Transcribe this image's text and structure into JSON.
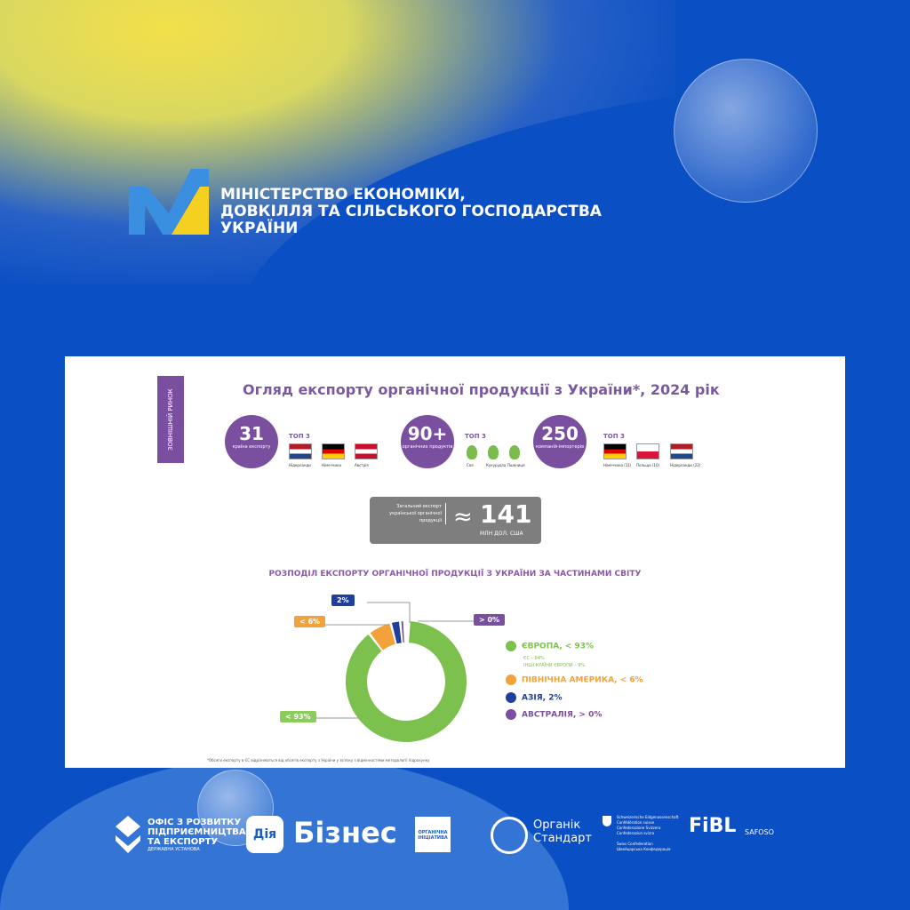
{
  "header": {
    "ministry": [
      "МІНІСТЕРСТВО ЕКОНОМІКИ,",
      "ДОВКІЛЛЯ ТА СІЛЬСЬКОГО ГОСПОДАРСТВА",
      "УКРАЇНИ"
    ]
  },
  "slide": {
    "side_label": "ЗОВНІШНІЙ РИНОК",
    "title": "Огляд експорту органічної продукції з України*, 2024 рік",
    "stats": [
      {
        "value": "31",
        "caption": "країна експорту",
        "top_label": "ТОП 3",
        "items": [
          "Нідерланди",
          "Німеччина",
          "Австрія"
        ]
      },
      {
        "value": "90+",
        "caption": "органічних продуктів",
        "top_label": "ТОП 3",
        "items": [
          "Соя",
          "Кукурудза",
          "Пшениця"
        ]
      },
      {
        "value": "250",
        "caption": "компаній-імпортерів",
        "top_label": "ТОП 3",
        "items": [
          "Німеччина (11)",
          "Польща (10)",
          "Нідерланди (22)"
        ]
      }
    ],
    "total": {
      "label": "Загальний експорт української органічної продукції",
      "approx": "≈",
      "value": "141",
      "unit": "МЛН ДОЛ. США"
    },
    "subtitle": "РОЗПОДІЛ ЕКСПОРТУ ОРГАНІЧНОЇ ПРОДУКЦІЇ З УКРАЇНИ ЗА ЧАСТИНАМИ СВІТУ",
    "footnote": "*Обсяги експорту в ЄС відрізняються від обсягів експорту з України у зв'язку з відмінностями методології підрахунку"
  },
  "chart_data": {
    "type": "pie",
    "categories": [
      "ЄВРОПА",
      "ПІВНІЧНА АМЕРИКА",
      "АЗІЯ",
      "АВСТРАЛІЯ"
    ],
    "values": [
      93,
      6,
      2,
      0.3
    ],
    "labels": [
      "< 93%",
      "< 6%",
      "2%",
      "> 0%"
    ],
    "legend": [
      "ЄВРОПА, < 93%",
      "ПІВНІЧНА АМЕРИКА, < 6%",
      "АЗІЯ, 2%",
      "АВСТРАЛІЯ, > 0%"
    ],
    "sub_legend": [
      "ЄС – 84%",
      "ІНШІ КРАЇНИ ЄВРОПИ – 9%"
    ],
    "colors": [
      "#7cc04e",
      "#f2a23a",
      "#1f3f9a",
      "#7b4fa0"
    ],
    "legend_position": "right"
  },
  "partners": {
    "office": [
      "ОФІС З РОЗВИТКУ",
      "ПІДПРИЄМНИЦТВА",
      "ТА ЕКСПОРТУ"
    ],
    "office_sub": "ДЕРЖАВНА УСТАНОВА",
    "diia": "Дія",
    "biznes": "Бізнес",
    "organic_initiative": "ОРГАНІЧНА ІНІЦІАТИВА",
    "organic_standard": [
      "Органік",
      "Стандарт"
    ],
    "swiss": [
      "Schweizerische Eidgenossenschaft",
      "Confédération suisse",
      "Confederazione Svizzera",
      "Confederaziun svizra"
    ],
    "swiss_sub": [
      "Swiss Confederation",
      "Швейцарська Конфедерація"
    ],
    "fibl": "FiBL",
    "safoso": "SAFOSO"
  }
}
